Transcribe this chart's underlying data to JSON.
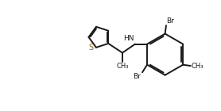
{
  "bg_color": "#ffffff",
  "line_color": "#1a1a1a",
  "S_color": "#8B6914",
  "linewidth": 1.4,
  "fig_width": 2.78,
  "fig_height": 1.4,
  "dpi": 100,
  "xlim": [
    0,
    10
  ],
  "ylim": [
    0,
    5
  ]
}
